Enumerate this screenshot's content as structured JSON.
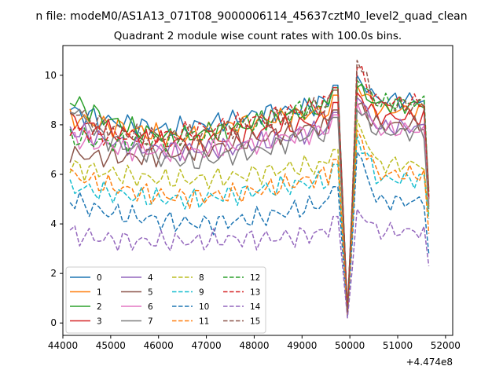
{
  "figure": {
    "suptitle": "n file: modeM0/AS1A13_071T08_9000006114_45637cztM0_level2_quad_clean",
    "axis_offset_label": "+4.474e8"
  },
  "chart_data": {
    "type": "line",
    "title": "Quadrant 2 module wise count rates with 100.0s bins.",
    "xlabel": "",
    "ylabel": "",
    "xlim": [
      44000,
      52150
    ],
    "ylim": [
      -0.5,
      11.2
    ],
    "x_offset": 447400000,
    "xticks": [
      44000,
      45000,
      46000,
      47000,
      48000,
      49000,
      50000,
      51000,
      52000
    ],
    "xtick_labels": [
      "44000",
      "45000",
      "46000",
      "47000",
      "48000",
      "49000",
      "50000",
      "51000",
      "52000"
    ],
    "yticks": [
      0,
      2,
      4,
      6,
      8,
      10
    ],
    "ytick_labels": [
      "0",
      "2",
      "4",
      "6",
      "8",
      "10"
    ],
    "grid": false,
    "legend_position": "lower-left",
    "legend_columns": 4,
    "x_range": [
      44150,
      51650
    ],
    "dip_x": 49960,
    "dip_y": 0,
    "series": [
      {
        "name": "0",
        "color": "#1f77b4",
        "dash": "solid",
        "base": [
          8.6,
          8.2,
          8.0,
          7.8,
          8.0,
          8.2,
          8.5,
          8.6,
          9.0
        ],
        "peak": 10.0,
        "end": 5.0
      },
      {
        "name": "1",
        "color": "#ff7f0e",
        "dash": "solid",
        "base": [
          8.3,
          8.0,
          7.8,
          7.5,
          7.6,
          8.0,
          8.2,
          8.4,
          8.6
        ],
        "peak": 9.6,
        "end": 5.1
      },
      {
        "name": "2",
        "color": "#2ca02c",
        "dash": "solid",
        "base": [
          9.0,
          8.3,
          7.8,
          7.5,
          7.6,
          7.8,
          8.2,
          8.5,
          8.8
        ],
        "peak": 9.5,
        "end": 5.3
      },
      {
        "name": "3",
        "color": "#d62728",
        "dash": "solid",
        "base": [
          8.2,
          7.8,
          7.5,
          7.3,
          7.3,
          7.5,
          7.8,
          8.0,
          8.3
        ],
        "peak": 9.3,
        "end": 5.0
      },
      {
        "name": "4",
        "color": "#9467bd",
        "dash": "solid",
        "base": [
          7.8,
          7.4,
          7.1,
          7.0,
          7.0,
          7.1,
          7.3,
          7.6,
          7.9
        ],
        "peak": 9.1,
        "end": 4.8
      },
      {
        "name": "5",
        "color": "#8c564b",
        "dash": "solid",
        "base": [
          6.8,
          6.7,
          6.7,
          6.8,
          7.0,
          7.2,
          7.5,
          7.8,
          8.0
        ],
        "peak": 8.8,
        "end": 4.7
      },
      {
        "name": "6",
        "color": "#e377c2",
        "dash": "solid",
        "base": [
          7.5,
          7.2,
          7.0,
          6.9,
          6.9,
          7.1,
          7.3,
          7.6,
          7.8
        ],
        "peak": 8.9,
        "end": 4.9
      },
      {
        "name": "7",
        "color": "#7f7f7f",
        "dash": "solid",
        "base": [
          8.8,
          7.5,
          7.0,
          6.6,
          6.5,
          6.8,
          7.0,
          7.5,
          7.7
        ],
        "peak": 8.6,
        "end": 4.6
      },
      {
        "name": "8",
        "color": "#bcbd22",
        "dash": "dashed",
        "base": [
          6.3,
          6.1,
          5.9,
          5.8,
          5.8,
          5.9,
          6.1,
          6.3,
          6.4
        ],
        "peak": 8.2,
        "end": 4.4
      },
      {
        "name": "9",
        "color": "#17becf",
        "dash": "dashed",
        "base": [
          5.5,
          5.3,
          5.1,
          5.0,
          5.0,
          5.2,
          5.4,
          5.6,
          5.8
        ],
        "peak": 7.6,
        "end": 4.2
      },
      {
        "name": "10",
        "color": "#1f77b4",
        "dash": "dashed",
        "base": [
          5.0,
          4.5,
          4.3,
          4.1,
          4.0,
          4.1,
          4.3,
          4.6,
          4.9
        ],
        "peak": 6.9,
        "end": 2.8
      },
      {
        "name": "11",
        "color": "#ff7f0e",
        "dash": "dashed",
        "base": [
          6.0,
          5.6,
          5.3,
          5.1,
          5.1,
          5.2,
          5.4,
          5.7,
          6.0
        ],
        "peak": 7.8,
        "end": 3.6
      },
      {
        "name": "12",
        "color": "#2ca02c",
        "dash": "dashed",
        "base": [
          7.5,
          7.3,
          7.3,
          7.4,
          7.6,
          7.9,
          8.2,
          8.6,
          8.9
        ],
        "peak": 9.8,
        "end": 5.2
      },
      {
        "name": "13",
        "color": "#d62728",
        "dash": "dashed",
        "base": [
          7.8,
          7.6,
          7.5,
          7.6,
          7.8,
          8.0,
          8.3,
          8.6,
          8.9
        ],
        "peak": 10.3,
        "end": 5.1
      },
      {
        "name": "14",
        "color": "#9467bd",
        "dash": "dashed",
        "base": [
          3.6,
          3.4,
          3.3,
          3.3,
          3.3,
          3.4,
          3.4,
          3.5,
          3.7
        ],
        "peak": 4.6,
        "end": 2.3
      },
      {
        "name": "15",
        "color": "#8c564b",
        "dash": "dashed",
        "base": [
          8.6,
          8.0,
          7.6,
          7.5,
          7.6,
          7.9,
          8.2,
          8.5,
          8.8
        ],
        "peak": 10.6,
        "end": 5.4
      }
    ]
  }
}
